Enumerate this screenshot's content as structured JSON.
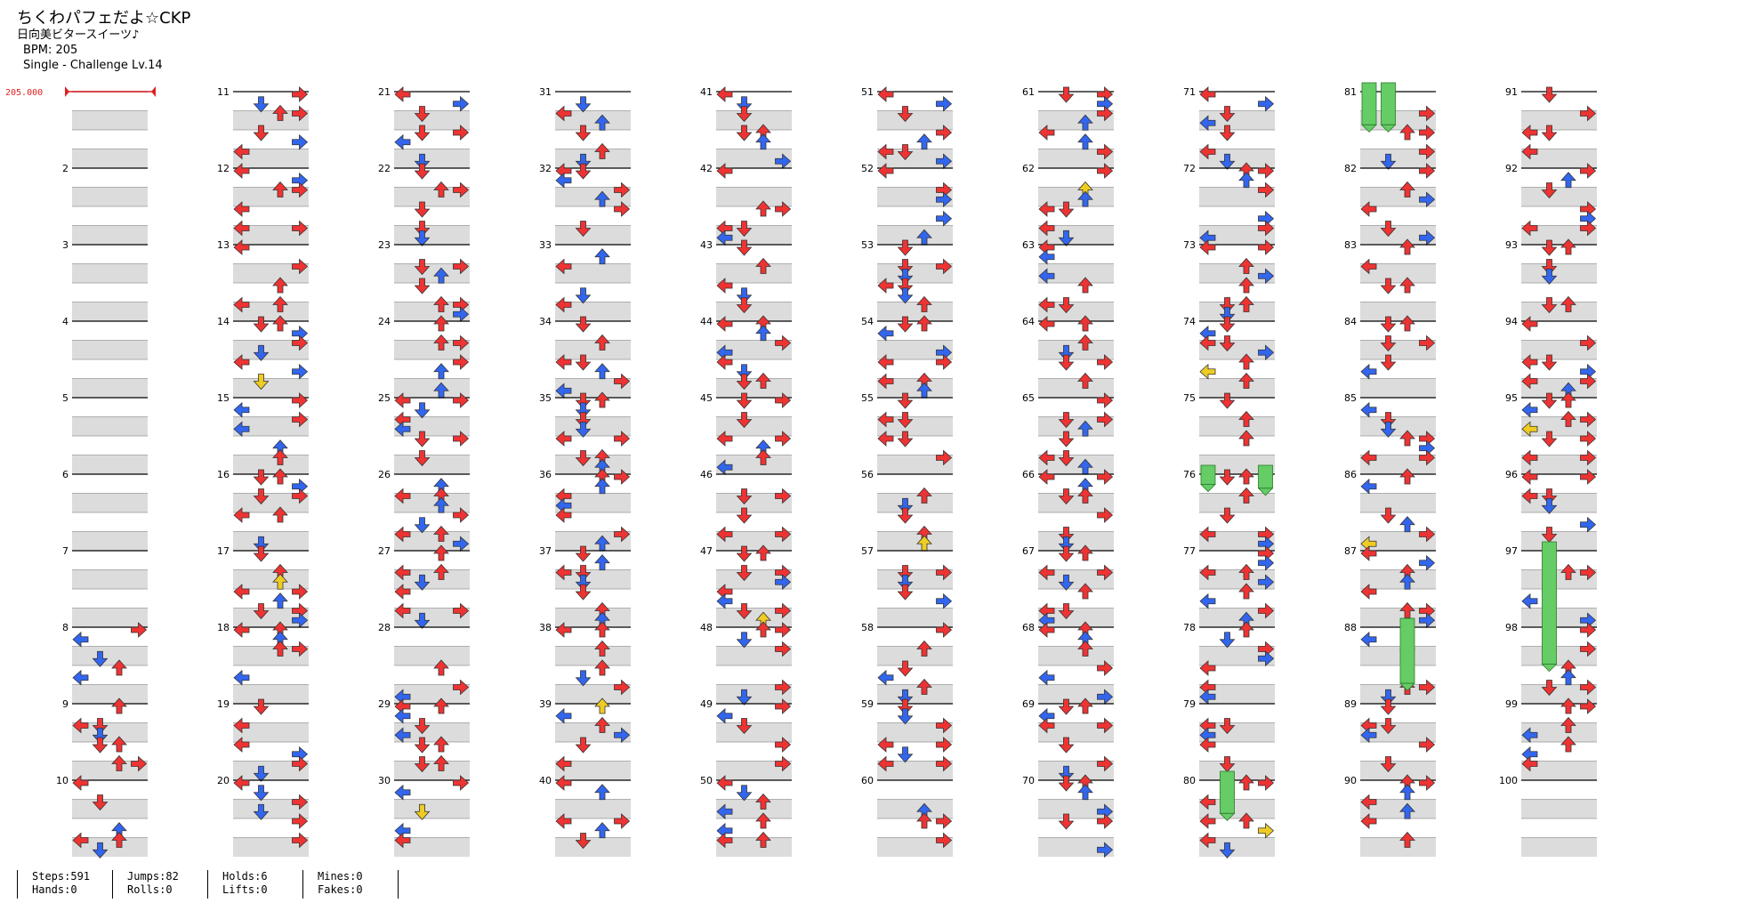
{
  "header": {
    "title": "ちくわパフェだよ☆CKP",
    "artist": "日向美ビタースイーツ♪",
    "bpm": "BPM: 205",
    "difficulty": "Single - Challenge  Lv.14",
    "bpm_marker": "205.000"
  },
  "chart_data": {
    "type": "step-chart",
    "columns": 10,
    "measures_per_column": 10,
    "lanes": [
      "left",
      "down",
      "up",
      "right"
    ],
    "measure_labels": [
      "",
      "2",
      "3",
      "4",
      "5",
      "6",
      "7",
      "8",
      "9",
      "10",
      "11",
      "12",
      "13",
      "14",
      "15",
      "16",
      "17",
      "18",
      "19",
      "20",
      "21",
      "22",
      "23",
      "24",
      "25",
      "26",
      "27",
      "28",
      "29",
      "30",
      "31",
      "32",
      "33",
      "34",
      "35",
      "36",
      "37",
      "38",
      "39",
      "40",
      "41",
      "42",
      "43",
      "44",
      "45",
      "46",
      "47",
      "48",
      "49",
      "50",
      "51",
      "52",
      "53",
      "54",
      "55",
      "56",
      "57",
      "58",
      "59",
      "60",
      "61",
      "62",
      "63",
      "64",
      "65",
      "66",
      "67",
      "68",
      "69",
      "70",
      "71",
      "72",
      "73",
      "74",
      "75",
      "76",
      "77",
      "78",
      "79",
      "80",
      "81",
      "82",
      "83",
      "84",
      "85",
      "86",
      "87",
      "88",
      "89",
      "90",
      "91",
      "92",
      "93",
      "94",
      "95",
      "96",
      "97",
      "98",
      "99",
      "100"
    ],
    "colors": {
      "quarter": "#ee3333",
      "eighth": "#3366ee",
      "sixteenth": "#eecc22",
      "hold": "#66cc66",
      "bpm": "#dd2222"
    },
    "seed": 205
  },
  "stats": {
    "steps": "Steps:591",
    "hands": "Hands:0",
    "jumps": "Jumps:82",
    "rolls": "Rolls:0",
    "holds": "Holds:6",
    "lifts": "Lifts:0",
    "mines": "Mines:0",
    "fakes": "Fakes:0"
  }
}
